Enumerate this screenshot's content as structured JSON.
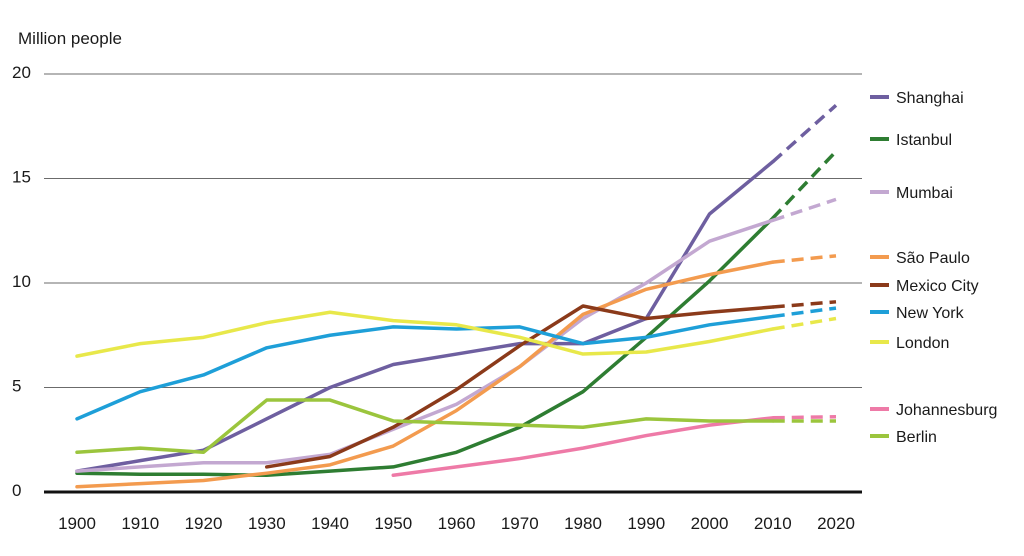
{
  "chart_data": {
    "type": "line",
    "ylabel": "Million people",
    "ylim": [
      0,
      20
    ],
    "yticks": [
      0,
      5,
      10,
      15,
      20
    ],
    "x": [
      1900,
      1910,
      1920,
      1930,
      1940,
      1950,
      1960,
      1970,
      1980,
      1990,
      2000,
      2010,
      2020
    ],
    "xticks": [
      "1900",
      "1910",
      "1920",
      "1930",
      "1940",
      "1950",
      "1960",
      "1970",
      "1980",
      "1990",
      "2000",
      "2010",
      "2020"
    ],
    "grid": true,
    "legend_position": "right",
    "projected_from": 2010,
    "series": [
      {
        "name": "Shanghai",
        "color": "#6e5fa0",
        "values": [
          1.0,
          1.5,
          2.0,
          3.5,
          5.0,
          6.1,
          6.6,
          7.1,
          7.1,
          8.3,
          13.3,
          15.8,
          18.5
        ]
      },
      {
        "name": "Istanbul",
        "color": "#2e7d32",
        "values": [
          0.9,
          0.85,
          0.85,
          0.8,
          1.0,
          1.2,
          1.9,
          3.1,
          4.8,
          7.4,
          10.1,
          13.1,
          16.3
        ]
      },
      {
        "name": "Mumbai",
        "color": "#c3a8d1",
        "values": [
          1.0,
          1.2,
          1.4,
          1.4,
          1.8,
          3.0,
          4.2,
          6.0,
          8.3,
          10.0,
          12.0,
          13.0,
          14.0
        ]
      },
      {
        "name": "São Paulo",
        "color": "#f39b4f",
        "values": [
          0.25,
          0.4,
          0.55,
          0.9,
          1.3,
          2.2,
          3.9,
          6.0,
          8.5,
          9.7,
          10.4,
          11.0,
          11.3
        ]
      },
      {
        "name": "Mexico City",
        "color": "#8b3a1a",
        "values": [
          null,
          null,
          null,
          1.2,
          1.7,
          3.1,
          4.9,
          7.0,
          8.9,
          8.3,
          8.6,
          8.85,
          9.1
        ]
      },
      {
        "name": "New York",
        "color": "#1e9fd8",
        "values": [
          3.5,
          4.8,
          5.6,
          6.9,
          7.5,
          7.9,
          7.8,
          7.9,
          7.1,
          7.4,
          8.0,
          8.4,
          8.8
        ]
      },
      {
        "name": "London",
        "color": "#e8e84a",
        "values": [
          6.5,
          7.1,
          7.4,
          8.1,
          8.6,
          8.2,
          8.0,
          7.4,
          6.6,
          6.7,
          7.2,
          7.8,
          8.3
        ]
      },
      {
        "name": "Johannesburg",
        "color": "#ee7aa7",
        "values": [
          null,
          null,
          null,
          null,
          null,
          0.8,
          1.2,
          1.6,
          2.1,
          2.7,
          3.2,
          3.55,
          3.6
        ]
      },
      {
        "name": "Berlin",
        "color": "#9bc53d",
        "values": [
          1.9,
          2.1,
          1.9,
          4.4,
          4.4,
          3.4,
          3.3,
          3.2,
          3.1,
          3.5,
          3.4,
          3.4,
          3.4
        ]
      }
    ]
  }
}
